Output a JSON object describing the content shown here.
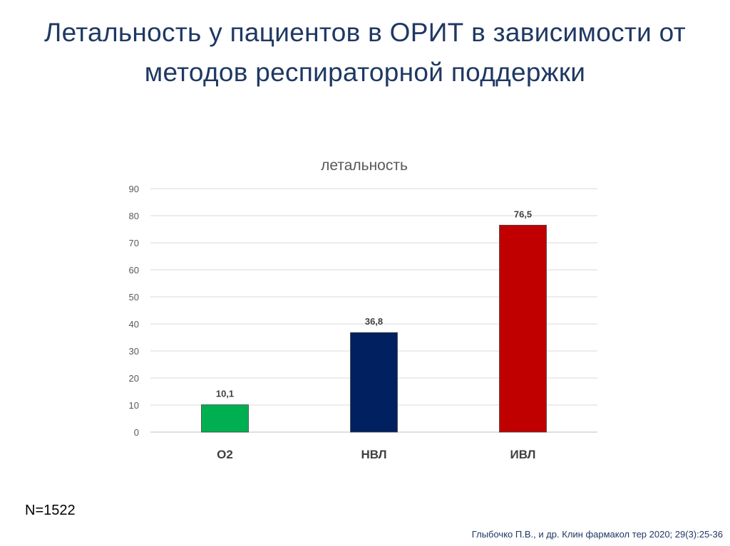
{
  "slide": {
    "title_line1": "Летальность у пациентов в ОРИТ в зависимости от",
    "title_line2": "методов респираторной поддержки",
    "sample_size": "N=1522",
    "citation": "Глыбочко П.В., и др. Клин фармакол тер 2020; 29(3):25-36"
  },
  "chart_data": {
    "type": "bar",
    "title": "летальность",
    "categories": [
      "O2",
      "НВЛ",
      "ИВЛ"
    ],
    "values": [
      10.1,
      36.8,
      76.5
    ],
    "value_labels": [
      "10,1",
      "36,8",
      "76,5"
    ],
    "bar_colors": [
      "#00b050",
      "#002060",
      "#c00000"
    ],
    "xlabel": "",
    "ylabel": "",
    "ylim": [
      0,
      90
    ],
    "yticks": [
      0,
      10,
      20,
      30,
      40,
      50,
      60,
      70,
      80,
      90
    ],
    "grid": true,
    "legend": "none"
  }
}
